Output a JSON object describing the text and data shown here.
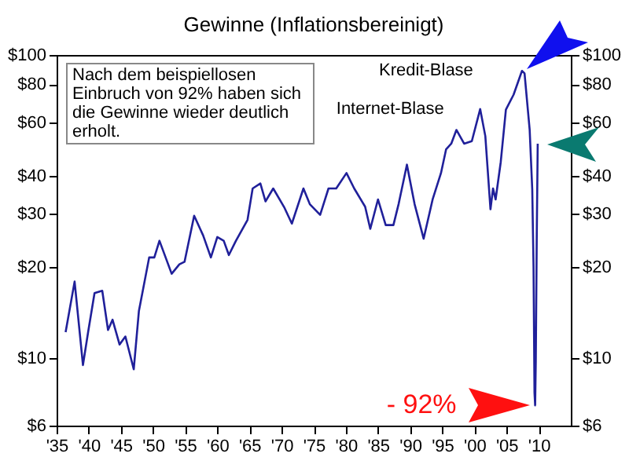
{
  "chart_data": {
    "type": "line",
    "title": "Gewinne (Inflationsbereinigt)",
    "x": [
      1936.4,
      1937.8,
      1939.1,
      1939.9,
      1940.9,
      1942.1,
      1943,
      1943.7,
      1944.8,
      1945.7,
      1947,
      1947.8,
      1949.4,
      1950.2,
      1951,
      1952.9,
      1954.1,
      1954.9,
      1956.4,
      1957.8,
      1959,
      1960,
      1961,
      1961.8,
      1962.9,
      1964.7,
      1965.5,
      1966.7,
      1967.5,
      1968.7,
      1970.4,
      1971.6,
      1973.4,
      1974.4,
      1976,
      1977.3,
      1978.5,
      1980.1,
      1981.3,
      1983,
      1983.8,
      1985,
      1986.2,
      1987.4,
      1988.2,
      1989.5,
      1990.7,
      1992.1,
      1993.5,
      1994.8,
      1995.6,
      1996.4,
      1997.2,
      1998.4,
      1999.6,
      2000.9,
      2001.7,
      2002.5,
      2002.9,
      2003.3,
      2004.1,
      2004.9,
      2006.1,
      2007.4,
      2007.8,
      2008.6,
      2009,
      2009.2,
      2009.35,
      2009.45,
      2009.55,
      2009.7,
      2009.85
    ],
    "series": [
      {
        "color": "#20209a",
        "values": [
          12.2,
          17.9,
          9.5,
          12.2,
          16.4,
          16.7,
          12.4,
          13.4,
          11.1,
          11.8,
          9.2,
          14.3,
          21.5,
          21.5,
          24.4,
          19,
          20.4,
          20.8,
          29.5,
          25.4,
          21.5,
          25.1,
          24.4,
          21.9,
          24.4,
          28.6,
          36.3,
          37.7,
          32.9,
          36.3,
          31.5,
          27.8,
          36.3,
          32.2,
          29.7,
          36.3,
          36.3,
          40.8,
          36.3,
          31.6,
          26.7,
          33.4,
          27.5,
          27.5,
          32.2,
          43.5,
          32.2,
          24.8,
          33.4,
          40.8,
          48.9,
          51,
          56.6,
          51,
          52,
          66.3,
          54,
          31,
          36.3,
          33.4,
          44.4,
          66,
          74,
          88.6,
          87,
          56.6,
          36,
          20,
          7.7,
          7,
          9.8,
          25,
          51
        ]
      }
    ],
    "xlim": [
      1935,
      2015
    ],
    "xticks": [
      {
        "value": 1935,
        "label": "'35"
      },
      {
        "value": 1940,
        "label": "'40"
      },
      {
        "value": 1945,
        "label": "'45"
      },
      {
        "value": 1950,
        "label": "'50"
      },
      {
        "value": 1955,
        "label": "'55"
      },
      {
        "value": 1960,
        "label": "'60"
      },
      {
        "value": 1965,
        "label": "'65"
      },
      {
        "value": 1970,
        "label": "'70"
      },
      {
        "value": 1975,
        "label": "'75"
      },
      {
        "value": 1980,
        "label": "'80"
      },
      {
        "value": 1985,
        "label": "'85"
      },
      {
        "value": 1990,
        "label": "'90"
      },
      {
        "value": 1995,
        "label": "'95"
      },
      {
        "value": 2000,
        "label": "'00"
      },
      {
        "value": 2005,
        "label": "'05"
      },
      {
        "value": 2010,
        "label": "'10"
      }
    ],
    "ylim": [
      6,
      100
    ],
    "yticks": [
      {
        "value": 6,
        "label": "$6"
      },
      {
        "value": 10,
        "label": "$10"
      },
      {
        "value": 20,
        "label": "$20"
      },
      {
        "value": 30,
        "label": "$30"
      },
      {
        "value": 40,
        "label": "$40"
      },
      {
        "value": 60,
        "label": "$60"
      },
      {
        "value": 80,
        "label": "$80"
      },
      {
        "value": 100,
        "label": "$100"
      }
    ],
    "log": "y",
    "annotations": [
      "Nach dem beispiellosen Einbruch von 92% haben sich die Gewinne wieder deutlich erholt.",
      {
        "text": "Kredit-Blase",
        "x": 2007.4,
        "y": 88.6
      },
      {
        "text": "Internet-Blase",
        "x": 2000.9,
        "y": 66.3
      },
      {
        "text": "- 92%",
        "x": 2009.45,
        "y": 7
      }
    ]
  }
}
